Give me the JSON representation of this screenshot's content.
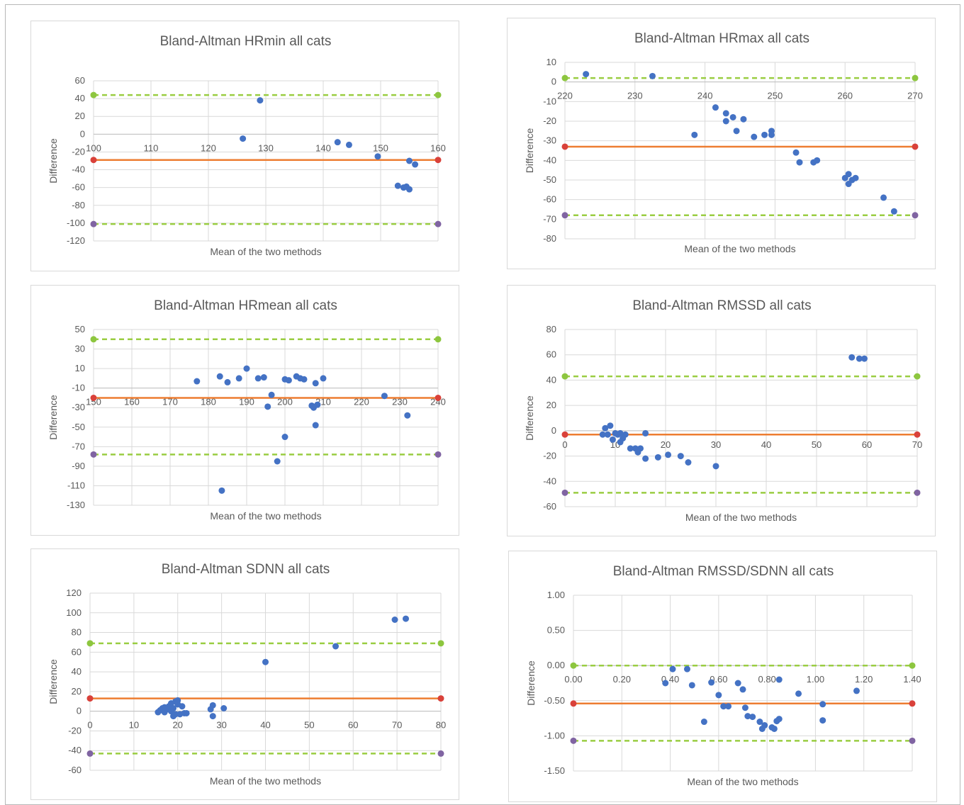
{
  "colors": {
    "points": "#4472C4",
    "mean_line": "#ED7D31",
    "loa_line": "#9ACD42",
    "loa_upper_marker": "#8DC63F",
    "mean_marker": "#D9413A",
    "loa_lower_marker": "#8064A2",
    "grid": "#d9d9d9",
    "text": "#595959"
  },
  "chart_data": [
    {
      "type": "scatter",
      "title": "Bland-Altman HRmin all cats",
      "xlabel": "Mean of the two methods",
      "ylabel": "Difference",
      "xlim": [
        100,
        160
      ],
      "xstep": 10,
      "ylim": [
        -120,
        60
      ],
      "ystep": 20,
      "xticks": [
        "100",
        "110",
        "120",
        "130",
        "140",
        "150",
        "160"
      ],
      "yticks": [
        "60",
        "40",
        "20",
        "0",
        "-20",
        "-40",
        "-60",
        "-80",
        "-100",
        "-120"
      ],
      "x_axis_at": 0,
      "mean_diff": -29,
      "upper_loa": 44,
      "lower_loa": -101,
      "points": [
        [
          126,
          -5
        ],
        [
          129,
          38
        ],
        [
          142.5,
          -9
        ],
        [
          144.5,
          -12
        ],
        [
          149.5,
          -25
        ],
        [
          153,
          -58
        ],
        [
          154,
          -60
        ],
        [
          154.5,
          -59
        ],
        [
          155,
          -62
        ],
        [
          155,
          -30
        ],
        [
          156,
          -34
        ]
      ]
    },
    {
      "type": "scatter",
      "title": "Bland-Altman HRmax all cats",
      "xlabel": "Mean of the two methods",
      "ylabel": "Difference",
      "xlim": [
        220,
        270
      ],
      "xstep": 10,
      "ylim": [
        -80,
        10
      ],
      "ystep": 10,
      "xticks": [
        "220",
        "230",
        "240",
        "250",
        "260",
        "270"
      ],
      "yticks": [
        "10",
        "0",
        "-10",
        "-20",
        "-30",
        "-40",
        "-50",
        "-60",
        "-70",
        "-80"
      ],
      "x_axis_at": 0,
      "mean_diff": -33,
      "upper_loa": 2,
      "lower_loa": -68,
      "points": [
        [
          223,
          4
        ],
        [
          232.5,
          3
        ],
        [
          238.5,
          -27
        ],
        [
          241.5,
          -13
        ],
        [
          243,
          -16
        ],
        [
          243,
          -20
        ],
        [
          244,
          -18
        ],
        [
          244.5,
          -25
        ],
        [
          245.5,
          -19
        ],
        [
          247,
          -28
        ],
        [
          248.5,
          -27
        ],
        [
          249.5,
          -25
        ],
        [
          249.5,
          -27
        ],
        [
          253,
          -36
        ],
        [
          253.5,
          -41
        ],
        [
          255.5,
          -41
        ],
        [
          256,
          -40
        ],
        [
          260,
          -49
        ],
        [
          260.5,
          -47
        ],
        [
          260.5,
          -52
        ],
        [
          261,
          -50
        ],
        [
          261.5,
          -49
        ],
        [
          265.5,
          -59
        ],
        [
          267,
          -66
        ]
      ]
    },
    {
      "type": "scatter",
      "title": "Bland-Altman HRmean all cats",
      "xlabel": "Mean of the two methods",
      "ylabel": "Difference",
      "xlim": [
        150,
        240
      ],
      "xstep": 10,
      "ylim": [
        -130,
        50
      ],
      "ystep": 20,
      "xticks": [
        "150",
        "160",
        "170",
        "180",
        "190",
        "200",
        "210",
        "220",
        "230",
        "240"
      ],
      "yticks": [
        "50",
        "30",
        "10",
        "-10",
        "-30",
        "-50",
        "-70",
        "-90",
        "-110",
        "-130"
      ],
      "x_axis_at": -10,
      "mean_diff": -20,
      "upper_loa": 40,
      "lower_loa": -78,
      "points": [
        [
          177,
          -3
        ],
        [
          183,
          2
        ],
        [
          185,
          -4
        ],
        [
          188,
          0
        ],
        [
          190,
          10
        ],
        [
          193,
          0
        ],
        [
          194.5,
          1
        ],
        [
          195.5,
          -29
        ],
        [
          196.5,
          -17
        ],
        [
          198,
          -85
        ],
        [
          200,
          -1
        ],
        [
          200,
          -60
        ],
        [
          201,
          -2
        ],
        [
          203,
          2
        ],
        [
          204,
          0
        ],
        [
          205,
          -1
        ],
        [
          207,
          -28
        ],
        [
          207.5,
          -30
        ],
        [
          208,
          -5
        ],
        [
          208,
          -48
        ],
        [
          208.5,
          -27
        ],
        [
          210,
          0
        ],
        [
          226,
          -18
        ],
        [
          232,
          -38
        ],
        [
          183.5,
          -115
        ]
      ]
    },
    {
      "type": "scatter",
      "title": "Bland-Altman RMSSD all cats",
      "xlabel": "Mean of the two methods",
      "ylabel": "Difference",
      "xlim": [
        0,
        70
      ],
      "xstep": 10,
      "ylim": [
        -60,
        80
      ],
      "ystep": 20,
      "xticks": [
        "0",
        "10",
        "20",
        "30",
        "40",
        "50",
        "60",
        "70"
      ],
      "yticks": [
        "80",
        "60",
        "40",
        "20",
        "0",
        "-20",
        "-40",
        "-60"
      ],
      "x_axis_at": 0,
      "mean_diff": -3,
      "upper_loa": 43,
      "lower_loa": -49,
      "points": [
        [
          7.5,
          -3
        ],
        [
          8,
          2
        ],
        [
          8.5,
          -3
        ],
        [
          9,
          4
        ],
        [
          9.5,
          -7
        ],
        [
          10,
          -2
        ],
        [
          10.5,
          -3
        ],
        [
          11,
          -9
        ],
        [
          11,
          -2
        ],
        [
          11.5,
          -6
        ],
        [
          12,
          -3
        ],
        [
          13,
          -14
        ],
        [
          14,
          -14
        ],
        [
          14.5,
          -17
        ],
        [
          15,
          -14
        ],
        [
          16,
          -2
        ],
        [
          16,
          -22
        ],
        [
          18.5,
          -21
        ],
        [
          20.5,
          -19
        ],
        [
          23,
          -20
        ],
        [
          24.5,
          -25
        ],
        [
          30,
          -28
        ],
        [
          57,
          58
        ],
        [
          58.5,
          57
        ],
        [
          59.5,
          57
        ]
      ]
    },
    {
      "type": "scatter",
      "title": "Bland-Altman SDNN all cats",
      "xlabel": "Mean of the two methods",
      "ylabel": "Difference",
      "xlim": [
        0,
        80
      ],
      "xstep": 10,
      "ylim": [
        -60,
        120
      ],
      "ystep": 20,
      "xticks": [
        "0",
        "10",
        "20",
        "30",
        "40",
        "50",
        "60",
        "70",
        "80"
      ],
      "yticks": [
        "120",
        "100",
        "80",
        "60",
        "40",
        "20",
        "0",
        "-20",
        "-40",
        "-60"
      ],
      "x_axis_at": 0,
      "mean_diff": 13,
      "upper_loa": 69,
      "lower_loa": -43,
      "points": [
        [
          15.5,
          -1
        ],
        [
          16,
          1
        ],
        [
          16.5,
          3
        ],
        [
          17,
          -1
        ],
        [
          17,
          4
        ],
        [
          17.5,
          2
        ],
        [
          18,
          5
        ],
        [
          18.5,
          0
        ],
        [
          18.5,
          8
        ],
        [
          19,
          -5
        ],
        [
          19,
          3
        ],
        [
          19.5,
          10
        ],
        [
          19.5,
          -3
        ],
        [
          20,
          11
        ],
        [
          20,
          7
        ],
        [
          20.5,
          -3
        ],
        [
          21,
          5
        ],
        [
          21.5,
          -2
        ],
        [
          22,
          -2
        ],
        [
          27.5,
          2
        ],
        [
          28,
          6
        ],
        [
          28,
          -5
        ],
        [
          30.5,
          3
        ],
        [
          40,
          50
        ],
        [
          56,
          66
        ],
        [
          69.5,
          93
        ],
        [
          72,
          94
        ]
      ]
    },
    {
      "type": "scatter",
      "title": "Bland-Altman RMSSD/SDNN all cats",
      "xlabel": "Mean of the two methods",
      "ylabel": "Difference",
      "xlim": [
        0,
        1.4
      ],
      "xstep": 0.2,
      "ylim": [
        -1.5,
        1.0
      ],
      "ystep": 0.5,
      "xticks": [
        "0.00",
        "0.20",
        "0.40",
        "0.60",
        "0.80",
        "1.00",
        "1.20",
        "1.40"
      ],
      "yticks": [
        "1.00",
        "0.50",
        "0.00",
        "-0.50",
        "-1.00",
        "-1.50"
      ],
      "x_axis_at": 0,
      "mean_diff": -0.54,
      "upper_loa": 0.0,
      "lower_loa": -1.07,
      "points": [
        [
          0.38,
          -0.25
        ],
        [
          0.41,
          -0.05
        ],
        [
          0.47,
          -0.05
        ],
        [
          0.49,
          -0.28
        ],
        [
          0.54,
          -0.8
        ],
        [
          0.57,
          -0.24
        ],
        [
          0.6,
          -0.42
        ],
        [
          0.62,
          -0.58
        ],
        [
          0.64,
          -0.58
        ],
        [
          0.68,
          -0.25
        ],
        [
          0.7,
          -0.34
        ],
        [
          0.71,
          -0.6
        ],
        [
          0.72,
          -0.72
        ],
        [
          0.74,
          -0.73
        ],
        [
          0.77,
          -0.8
        ],
        [
          0.78,
          -0.9
        ],
        [
          0.79,
          -0.85
        ],
        [
          0.82,
          -0.88
        ],
        [
          0.83,
          -0.9
        ],
        [
          0.84,
          -0.79
        ],
        [
          0.85,
          -0.76
        ],
        [
          0.85,
          -0.2
        ],
        [
          0.93,
          -0.4
        ],
        [
          1.03,
          -0.55
        ],
        [
          1.03,
          -0.78
        ],
        [
          1.17,
          -0.36
        ]
      ]
    }
  ]
}
